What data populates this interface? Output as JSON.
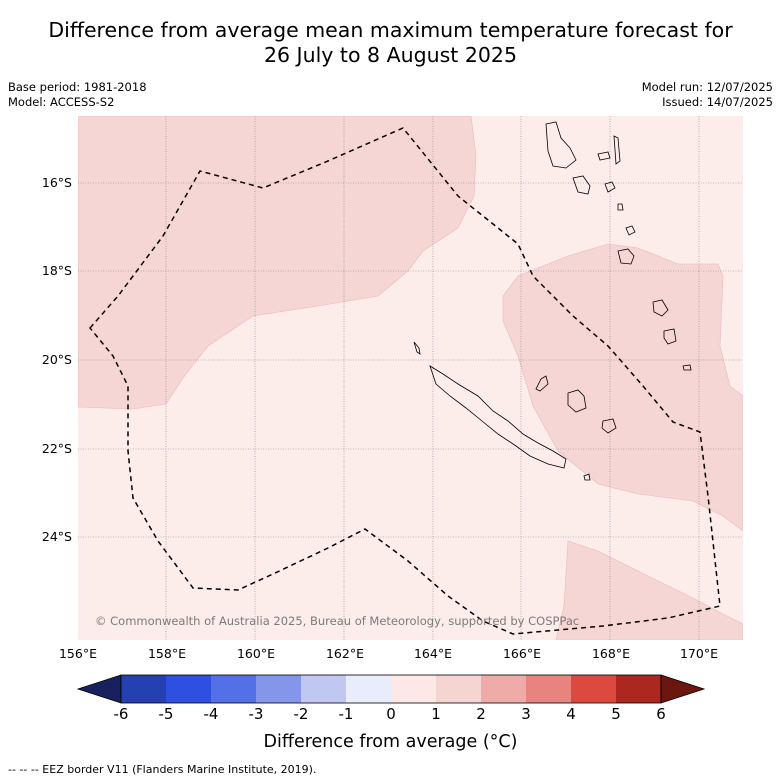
{
  "title_line1": "Difference from average mean maximum temperature forecast for",
  "title_line2": "26 July to 8 August 2025",
  "base_period": "Base period: 1981-2018",
  "model": "Model: ACCESS-S2",
  "model_run": "Model run: 12/07/2025",
  "issued": "Issued: 14/07/2025",
  "copyright": "© Commonwealth of Australia 2025, Bureau of Meteorology, supported by COSPPac",
  "lat_labels": [
    "16°S",
    "18°S",
    "20°S",
    "22°S",
    "24°S"
  ],
  "lon_labels": [
    "156°E",
    "158°E",
    "160°E",
    "162°E",
    "164°E",
    "166°E",
    "168°E",
    "170°E"
  ],
  "colorbar": {
    "labels": [
      "-6",
      "-5",
      "-4",
      "-3",
      "-2",
      "-1",
      "0",
      "1",
      "2",
      "3",
      "4",
      "5",
      "6"
    ],
    "colors": [
      "#18205f",
      "#2540b0",
      "#2f4fe0",
      "#5370e6",
      "#8496ea",
      "#c0c8f2",
      "#e9ecfa",
      "#fce9e7",
      "#f5d4d2",
      "#efaba8",
      "#e7847e",
      "#dc4a3f",
      "#ab2720",
      "#6b1710"
    ],
    "title": "Difference from average (°C)"
  },
  "footer": "-- -- -- EEZ border V11 (Flanders Marine Institute, 2019).",
  "map_colors": {
    "light": "#fcecea",
    "medium": "#f5d6d4",
    "outline": "#d8a6a6"
  }
}
